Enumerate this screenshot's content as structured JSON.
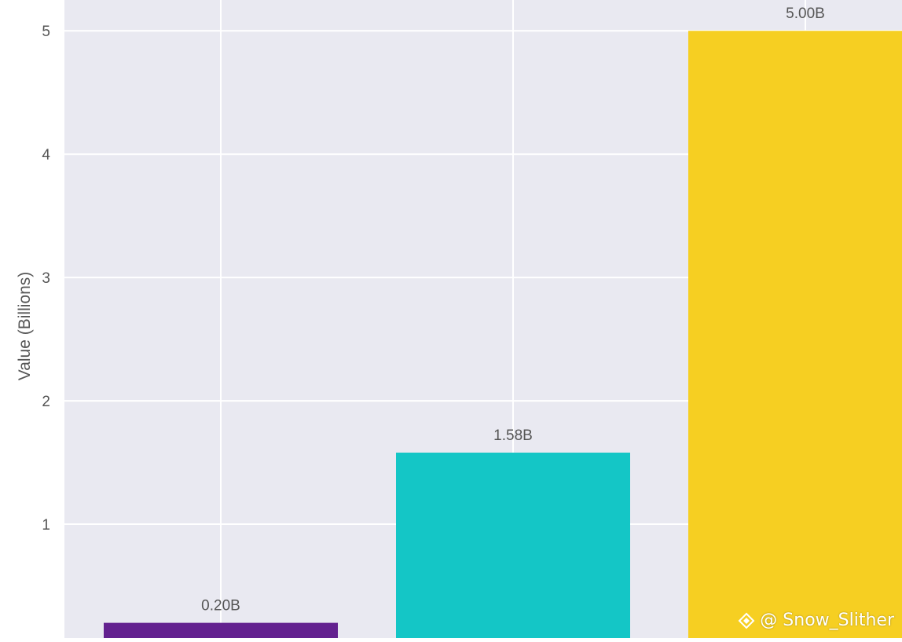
{
  "chart_data": {
    "type": "bar",
    "title": "",
    "xlabel": "",
    "ylabel": "Value (Billions)",
    "ylim": [
      0,
      5.25
    ],
    "yticks": [
      1,
      2,
      3,
      4,
      5
    ],
    "grid": true,
    "categories": [
      "",
      "",
      ""
    ],
    "values": [
      0.2,
      1.58,
      5.0
    ],
    "value_labels": [
      "0.20B",
      "1.58B",
      "5.00B"
    ],
    "colors": [
      "#63218f",
      "#14c6c6",
      "#f6cf22"
    ],
    "background_color": "#e9e9f1",
    "grid_color": "#ffffff"
  },
  "watermark": {
    "text": "@ Snow_Slither",
    "icon": "diamond-logo-icon"
  }
}
